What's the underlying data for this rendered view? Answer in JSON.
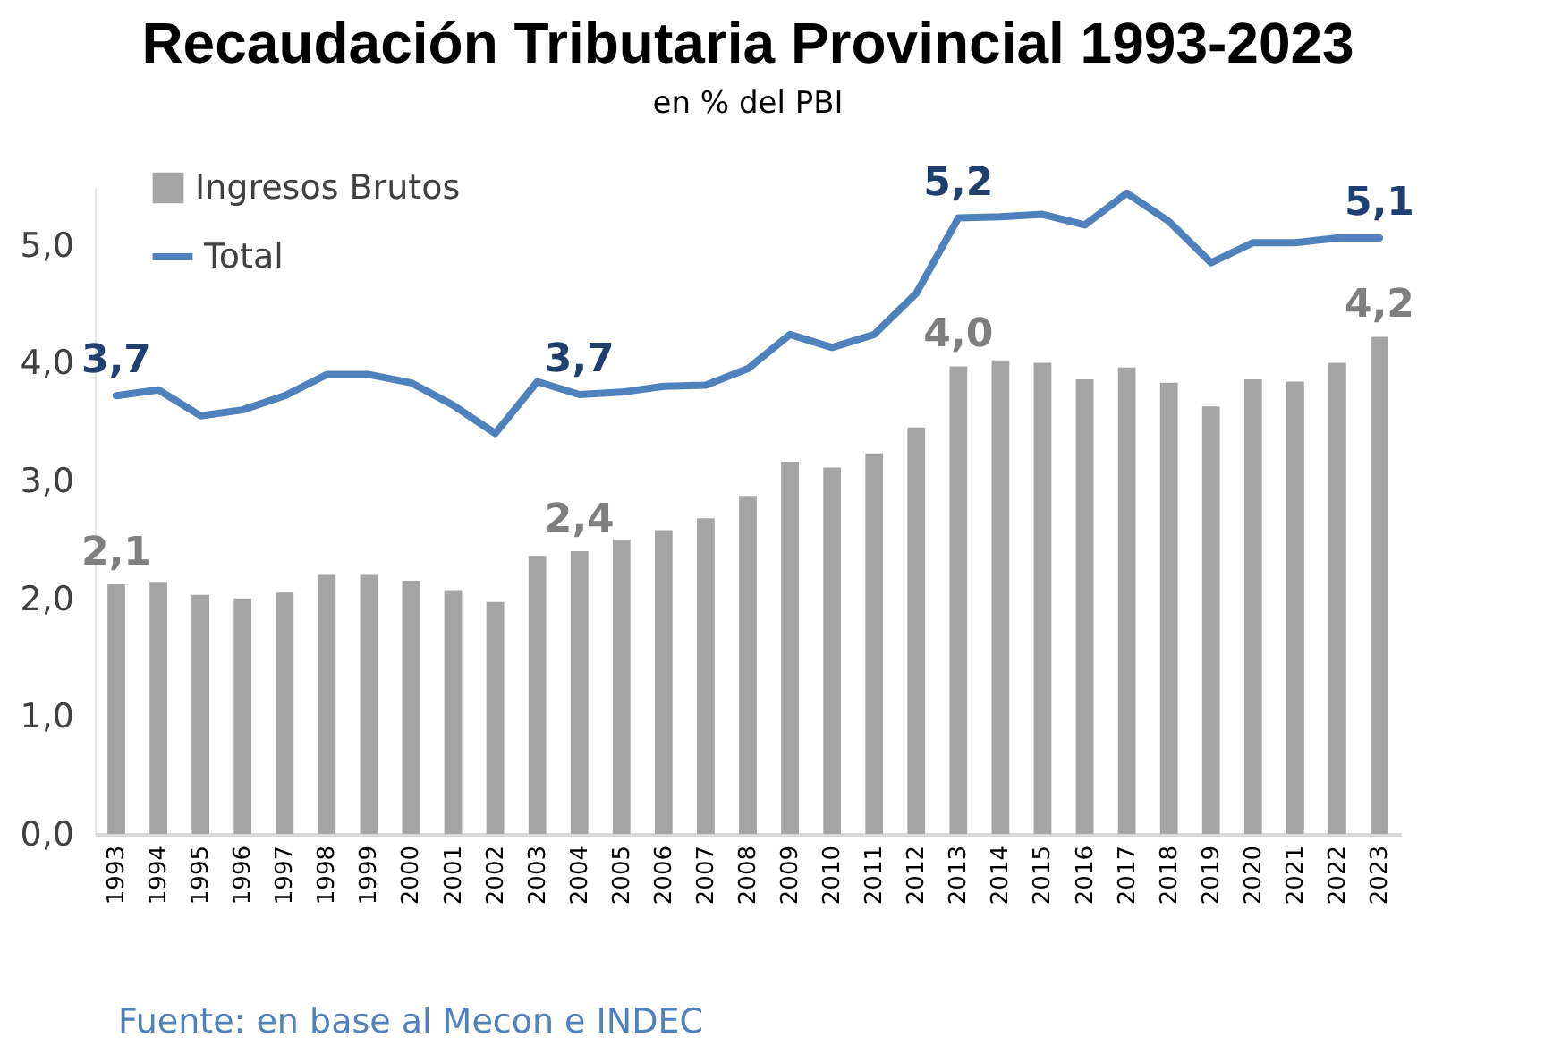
{
  "chart_data": {
    "type": "bar",
    "title": "Recaudación Tributaria Provincial 1993-2023",
    "subtitle": "en % del PBI",
    "categories": [
      "1993",
      "1994",
      "1995",
      "1996",
      "1997",
      "1998",
      "1999",
      "2000",
      "2001",
      "2002",
      "2003",
      "2004",
      "2005",
      "2006",
      "2007",
      "2008",
      "2009",
      "2010",
      "2011",
      "2012",
      "2013",
      "2014",
      "2015",
      "2016",
      "2017",
      "2018",
      "2019",
      "2020",
      "2021",
      "2022",
      "2023"
    ],
    "series": [
      {
        "name": "Ingresos Brutos",
        "color": "#a5a5a5",
        "values": [
          2.12,
          2.14,
          2.03,
          2.0,
          2.05,
          2.2,
          2.2,
          2.15,
          2.07,
          1.97,
          2.36,
          2.4,
          2.5,
          2.58,
          2.68,
          2.87,
          3.16,
          3.11,
          3.23,
          3.45,
          3.97,
          4.02,
          4.0,
          3.86,
          3.96,
          3.83,
          3.63,
          3.86,
          3.84,
          4.0,
          4.22
        ],
        "value_labels": [
          "2,1",
          null,
          null,
          null,
          null,
          null,
          null,
          null,
          null,
          null,
          null,
          "2,4",
          null,
          null,
          null,
          null,
          null,
          null,
          null,
          null,
          "4,0",
          null,
          null,
          null,
          null,
          null,
          null,
          null,
          null,
          null,
          "4,2"
        ]
      },
      {
        "name": "Total",
        "type": "line",
        "color": "#4f81bd",
        "values": [
          3.72,
          3.77,
          3.55,
          3.6,
          3.72,
          3.9,
          3.9,
          3.83,
          3.64,
          3.4,
          3.84,
          3.73,
          3.75,
          3.8,
          3.81,
          3.95,
          4.24,
          4.13,
          4.24,
          4.59,
          5.23,
          5.24,
          5.26,
          5.17,
          5.44,
          5.2,
          4.85,
          5.02,
          5.02,
          5.06,
          5.06
        ],
        "value_labels": [
          "3,7",
          null,
          null,
          null,
          null,
          null,
          null,
          null,
          null,
          null,
          null,
          "3,7",
          null,
          null,
          null,
          null,
          null,
          null,
          null,
          null,
          "5,2",
          null,
          null,
          null,
          null,
          null,
          null,
          null,
          null,
          null,
          "5,1"
        ]
      }
    ],
    "ylim": [
      0,
      5.5
    ],
    "yticks": [
      {
        "value": 0,
        "label": "0,0"
      },
      {
        "value": 1,
        "label": "1,0"
      },
      {
        "value": 2,
        "label": "2,0"
      },
      {
        "value": 3,
        "label": "3,0"
      },
      {
        "value": 4,
        "label": "4,0"
      },
      {
        "value": 5,
        "label": "5,0"
      }
    ],
    "legend": "top left",
    "annotations": [
      "Fuente: en base al Mecon e INDEC"
    ]
  }
}
